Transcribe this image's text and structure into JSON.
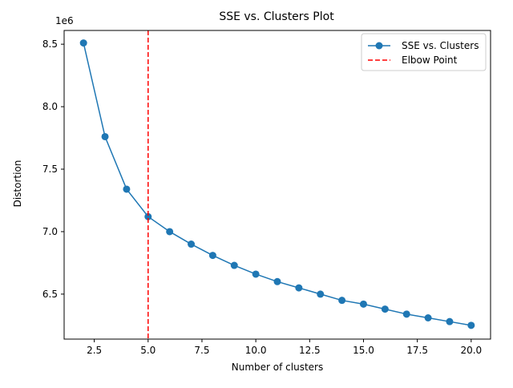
{
  "chart_data": {
    "type": "line",
    "title": "SSE vs. Clusters Plot",
    "xlabel": "Number of clusters",
    "ylabel": "Distortion",
    "y_offset_label": "1e6",
    "xlim": [
      1.1,
      20.9
    ],
    "ylim": [
      6.14,
      8.61
    ],
    "x_ticks": [
      2.5,
      5.0,
      7.5,
      10.0,
      12.5,
      15.0,
      17.5,
      20.0
    ],
    "x_tick_labels": [
      "2.5",
      "5.0",
      "7.5",
      "10.0",
      "12.5",
      "15.0",
      "17.5",
      "20.0"
    ],
    "y_ticks": [
      6.5,
      7.0,
      7.5,
      8.0,
      8.5
    ],
    "y_tick_labels": [
      "6.5",
      "7.0",
      "7.5",
      "8.0",
      "8.5"
    ],
    "grid": false,
    "legend_position": "top-right",
    "series": [
      {
        "name": "SSE vs. Clusters",
        "color": "#1f77b4",
        "marker": "circle",
        "x": [
          2,
          3,
          4,
          5,
          6,
          7,
          8,
          9,
          10,
          11,
          12,
          13,
          14,
          15,
          16,
          17,
          18,
          19,
          20
        ],
        "y": [
          8.51,
          7.76,
          7.34,
          7.12,
          7.0,
          6.9,
          6.81,
          6.73,
          6.66,
          6.6,
          6.55,
          6.5,
          6.45,
          6.42,
          6.38,
          6.34,
          6.31,
          6.28,
          6.25
        ]
      }
    ],
    "reference_lines": [
      {
        "name": "Elbow Point",
        "x": 5,
        "color": "#ff0000",
        "style": "dashed"
      }
    ]
  }
}
